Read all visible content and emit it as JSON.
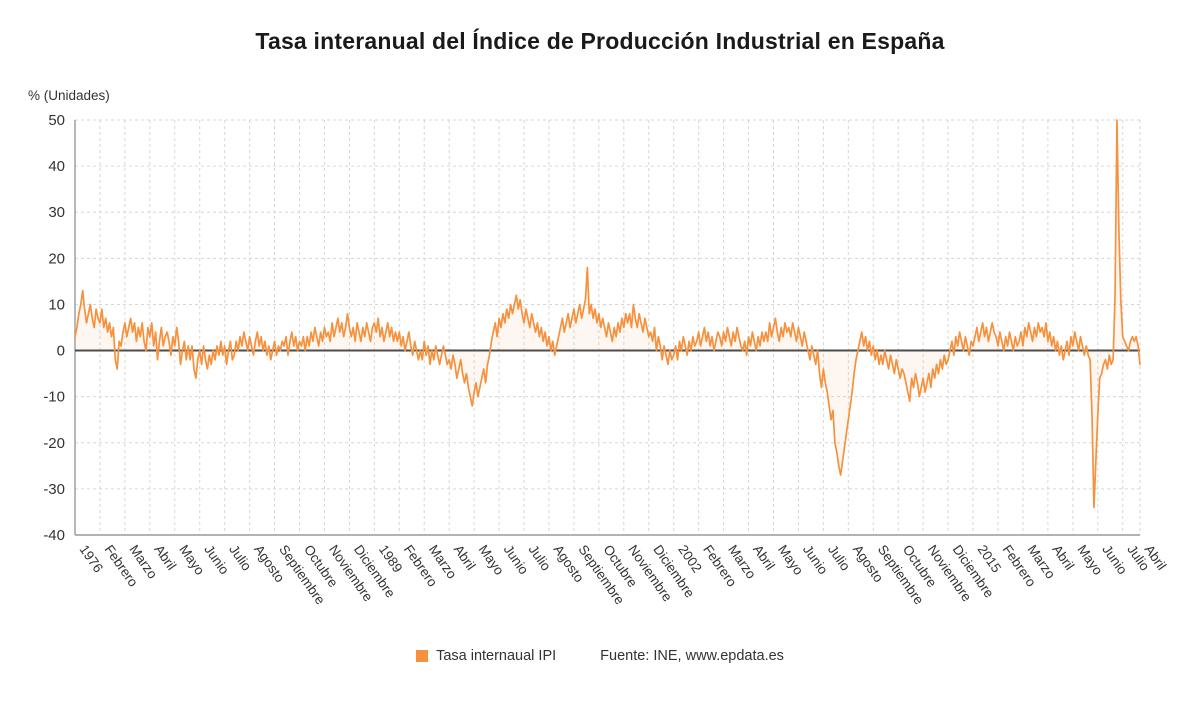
{
  "title": "Tasa interanual del Índice de Producción Industrial en España",
  "unit_label": "% (Unidades)",
  "legend": {
    "series_label": "Tasa internaual IPI",
    "source_label": "Fuente: INE, www.epdata.es"
  },
  "colors": {
    "series": "#F6913E",
    "series_fill": "rgba(246,145,62,0.08)",
    "grid": "#d6d6d6",
    "axis": "#999999",
    "zero_line": "#4a4a4a",
    "text": "#333333"
  },
  "chart_data": {
    "type": "line",
    "title": "Tasa interanual del Índice de Producción Industrial en España",
    "xlabel": "",
    "ylabel": "% (Unidades)",
    "ylim": [
      -40,
      50
    ],
    "y_ticks": [
      50,
      40,
      30,
      20,
      10,
      0,
      -10,
      -20,
      -30,
      -40
    ],
    "grid": true,
    "legend_position": "bottom",
    "x_start": "1976-01",
    "x_end": "2022-04",
    "frequency": "monthly",
    "tick_positions": [
      0,
      13,
      26,
      39,
      52,
      65,
      78,
      91,
      104,
      117,
      130,
      143,
      156,
      169,
      182,
      195,
      208,
      221,
      234,
      247,
      260,
      273,
      286,
      299,
      312,
      325,
      338,
      351,
      364,
      377,
      390,
      403,
      416,
      429,
      442,
      455,
      468,
      481,
      494,
      507,
      520,
      533,
      546,
      555
    ],
    "tick_labels": [
      "1976",
      "Febrero",
      "Marzo",
      "Abril",
      "Mayo",
      "Junio",
      "Julio",
      "Agosto",
      "Septiembre",
      "Octubre",
      "Noviembre",
      "Diciembre",
      "1989",
      "Febrero",
      "Marzo",
      "Abril",
      "Mayo",
      "Junio",
      "Julio",
      "Agosto",
      "Septiembre",
      "Octubre",
      "Noviembre",
      "Diciembre",
      "2002",
      "Febrero",
      "Marzo",
      "Abril",
      "Mayo",
      "Junio",
      "Julio",
      "Agosto",
      "Septiembre",
      "Octubre",
      "Noviembre",
      "Diciembre",
      "2015",
      "Febrero",
      "Marzo",
      "Abril",
      "Mayo",
      "Junio",
      "Julio",
      "Abril"
    ],
    "series": [
      {
        "name": "Tasa internaual IPI",
        "values": [
          3,
          5,
          8,
          10,
          13,
          9,
          6,
          8,
          10,
          7,
          5,
          9,
          7,
          6,
          9,
          5,
          7,
          4,
          6,
          3,
          5,
          -2,
          -4,
          2,
          1,
          4,
          6,
          3,
          5,
          7,
          4,
          6,
          2,
          5,
          3,
          6,
          2,
          0,
          5,
          3,
          6,
          1,
          4,
          -2,
          2,
          5,
          1,
          3,
          4,
          2,
          -1,
          3,
          1,
          5,
          2,
          -3,
          0,
          2,
          -2,
          1,
          -2,
          1,
          -4,
          -6,
          -2,
          0,
          -3,
          1,
          -2,
          -4,
          -1,
          -3,
          0,
          -2,
          1,
          -1,
          2,
          -1,
          1,
          -3,
          0,
          2,
          -2,
          -1,
          2,
          0,
          3,
          1,
          4,
          2,
          0,
          3,
          1,
          -1,
          2,
          4,
          1,
          3,
          0,
          2,
          -1,
          1,
          -2,
          0,
          2,
          -1,
          1,
          0,
          2,
          1,
          3,
          -1,
          2,
          4,
          1,
          3,
          0,
          2,
          1,
          3,
          0,
          3,
          1,
          4,
          2,
          5,
          3,
          1,
          4,
          2,
          5,
          3,
          4,
          2,
          6,
          3,
          5,
          7,
          4,
          6,
          3,
          5,
          8,
          5,
          3,
          5,
          2,
          6,
          4,
          2,
          5,
          3,
          6,
          4,
          2,
          5,
          6,
          4,
          7,
          3,
          5,
          2,
          4,
          6,
          3,
          5,
          2,
          4,
          2,
          4,
          1,
          3,
          0,
          2,
          4,
          1,
          -1,
          2,
          0,
          -2,
          0,
          -2,
          2,
          -1,
          1,
          -3,
          0,
          -2,
          1,
          -1,
          -3,
          -1,
          1,
          -1,
          -3,
          -2,
          -4,
          -1,
          -3,
          -6,
          -4,
          -2,
          -5,
          -7,
          -5,
          -8,
          -10,
          -12,
          -9,
          -7,
          -10,
          -8,
          -6,
          -4,
          -7,
          -3,
          -1,
          2,
          4,
          6,
          3,
          7,
          5,
          8,
          6,
          9,
          7,
          10,
          8,
          10,
          12,
          9,
          11,
          8,
          6,
          9,
          7,
          5,
          8,
          6,
          4,
          6,
          3,
          5,
          2,
          4,
          1,
          3,
          0,
          2,
          -1,
          1,
          3,
          5,
          7,
          4,
          6,
          8,
          5,
          7,
          9,
          6,
          8,
          10,
          7,
          9,
          11,
          18,
          8,
          10,
          7,
          9,
          6,
          8,
          5,
          7,
          5,
          3,
          6,
          4,
          2,
          5,
          3,
          6,
          4,
          7,
          5,
          8,
          6,
          8,
          5,
          10,
          7,
          5,
          8,
          6,
          4,
          7,
          5,
          3,
          4,
          2,
          5,
          0,
          3,
          1,
          -2,
          1,
          -1,
          -3,
          0,
          -2,
          -1,
          1,
          -2,
          2,
          0,
          3,
          1,
          -1,
          2,
          0,
          3,
          1,
          2,
          4,
          1,
          3,
          5,
          2,
          4,
          1,
          3,
          0,
          2,
          4,
          3,
          1,
          4,
          2,
          5,
          3,
          1,
          4,
          2,
          5,
          3,
          1,
          0,
          2,
          -1,
          3,
          1,
          4,
          2,
          0,
          3,
          1,
          4,
          2,
          4,
          2,
          6,
          3,
          5,
          7,
          4,
          2,
          5,
          3,
          6,
          4,
          5,
          3,
          6,
          4,
          2,
          5,
          3,
          1,
          4,
          2,
          0,
          -2,
          1,
          -1,
          -3,
          0,
          -5,
          -8,
          -4,
          -7,
          -9,
          -12,
          -15,
          -13,
          -20,
          -22,
          -25,
          -27,
          -24,
          -21,
          -18,
          -15,
          -12,
          -9,
          -5,
          -2,
          0,
          2,
          4,
          1,
          3,
          0,
          2,
          -1,
          1,
          -2,
          0,
          -3,
          -1,
          -3,
          0,
          -2,
          -4,
          -1,
          -3,
          -5,
          -2,
          -4,
          -6,
          -4,
          -5,
          -7,
          -9,
          -11,
          -6,
          -8,
          -5,
          -7,
          -10,
          -8,
          -6,
          -9,
          -7,
          -5,
          -8,
          -4,
          -6,
          -3,
          -5,
          -2,
          -4,
          -1,
          -3,
          -2,
          0,
          2,
          -1,
          3,
          1,
          4,
          2,
          0,
          3,
          1,
          -1,
          2,
          1,
          3,
          5,
          2,
          4,
          6,
          3,
          5,
          2,
          4,
          6,
          4,
          3,
          1,
          4,
          2,
          0,
          3,
          1,
          4,
          2,
          0,
          3,
          1,
          2,
          4,
          1,
          5,
          3,
          6,
          4,
          2,
          5,
          3,
          6,
          4,
          5,
          3,
          6,
          2,
          4,
          1,
          3,
          0,
          2,
          -1,
          1,
          -2,
          0,
          2,
          -1,
          3,
          1,
          4,
          2,
          0,
          3,
          1,
          -1,
          1,
          -1,
          -2,
          -14,
          -34,
          -24,
          -14,
          -6,
          -5,
          -3,
          -2,
          -4,
          -1,
          -3,
          -2,
          12,
          50,
          26,
          11,
          3,
          2,
          1,
          0,
          2,
          3,
          2,
          3,
          1,
          -3
        ]
      }
    ]
  }
}
